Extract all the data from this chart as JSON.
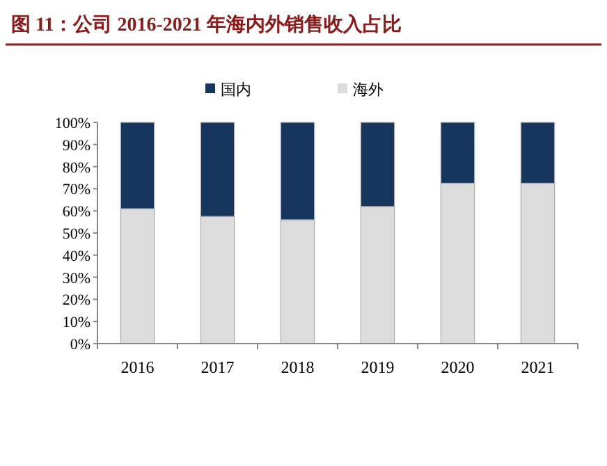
{
  "chart_data": {
    "type": "bar",
    "stacked": true,
    "title": "图 11：公司 2016-2021 年海内外销售收入占比",
    "categories": [
      "2016",
      "2017",
      "2018",
      "2019",
      "2020",
      "2021"
    ],
    "series": [
      {
        "name": "海外",
        "color": "#dcdcdc",
        "values": [
          61,
          57.5,
          56,
          62,
          72.5,
          72.5
        ]
      },
      {
        "name": "国内",
        "color": "#17365d",
        "values": [
          39,
          42.5,
          44,
          38,
          27.5,
          27.5
        ]
      }
    ],
    "ylim": [
      0,
      100
    ],
    "yticks": [
      {
        "value": 0,
        "label": "0%"
      },
      {
        "value": 10,
        "label": "10%"
      },
      {
        "value": 20,
        "label": "20%"
      },
      {
        "value": 30,
        "label": "30%"
      },
      {
        "value": 40,
        "label": "40%"
      },
      {
        "value": 50,
        "label": "50%"
      },
      {
        "value": 60,
        "label": "60%"
      },
      {
        "value": 70,
        "label": "70%"
      },
      {
        "value": 80,
        "label": "80%"
      },
      {
        "value": 90,
        "label": "90%"
      },
      {
        "value": 100,
        "label": "100%"
      }
    ],
    "legend": "top",
    "grid": false
  }
}
